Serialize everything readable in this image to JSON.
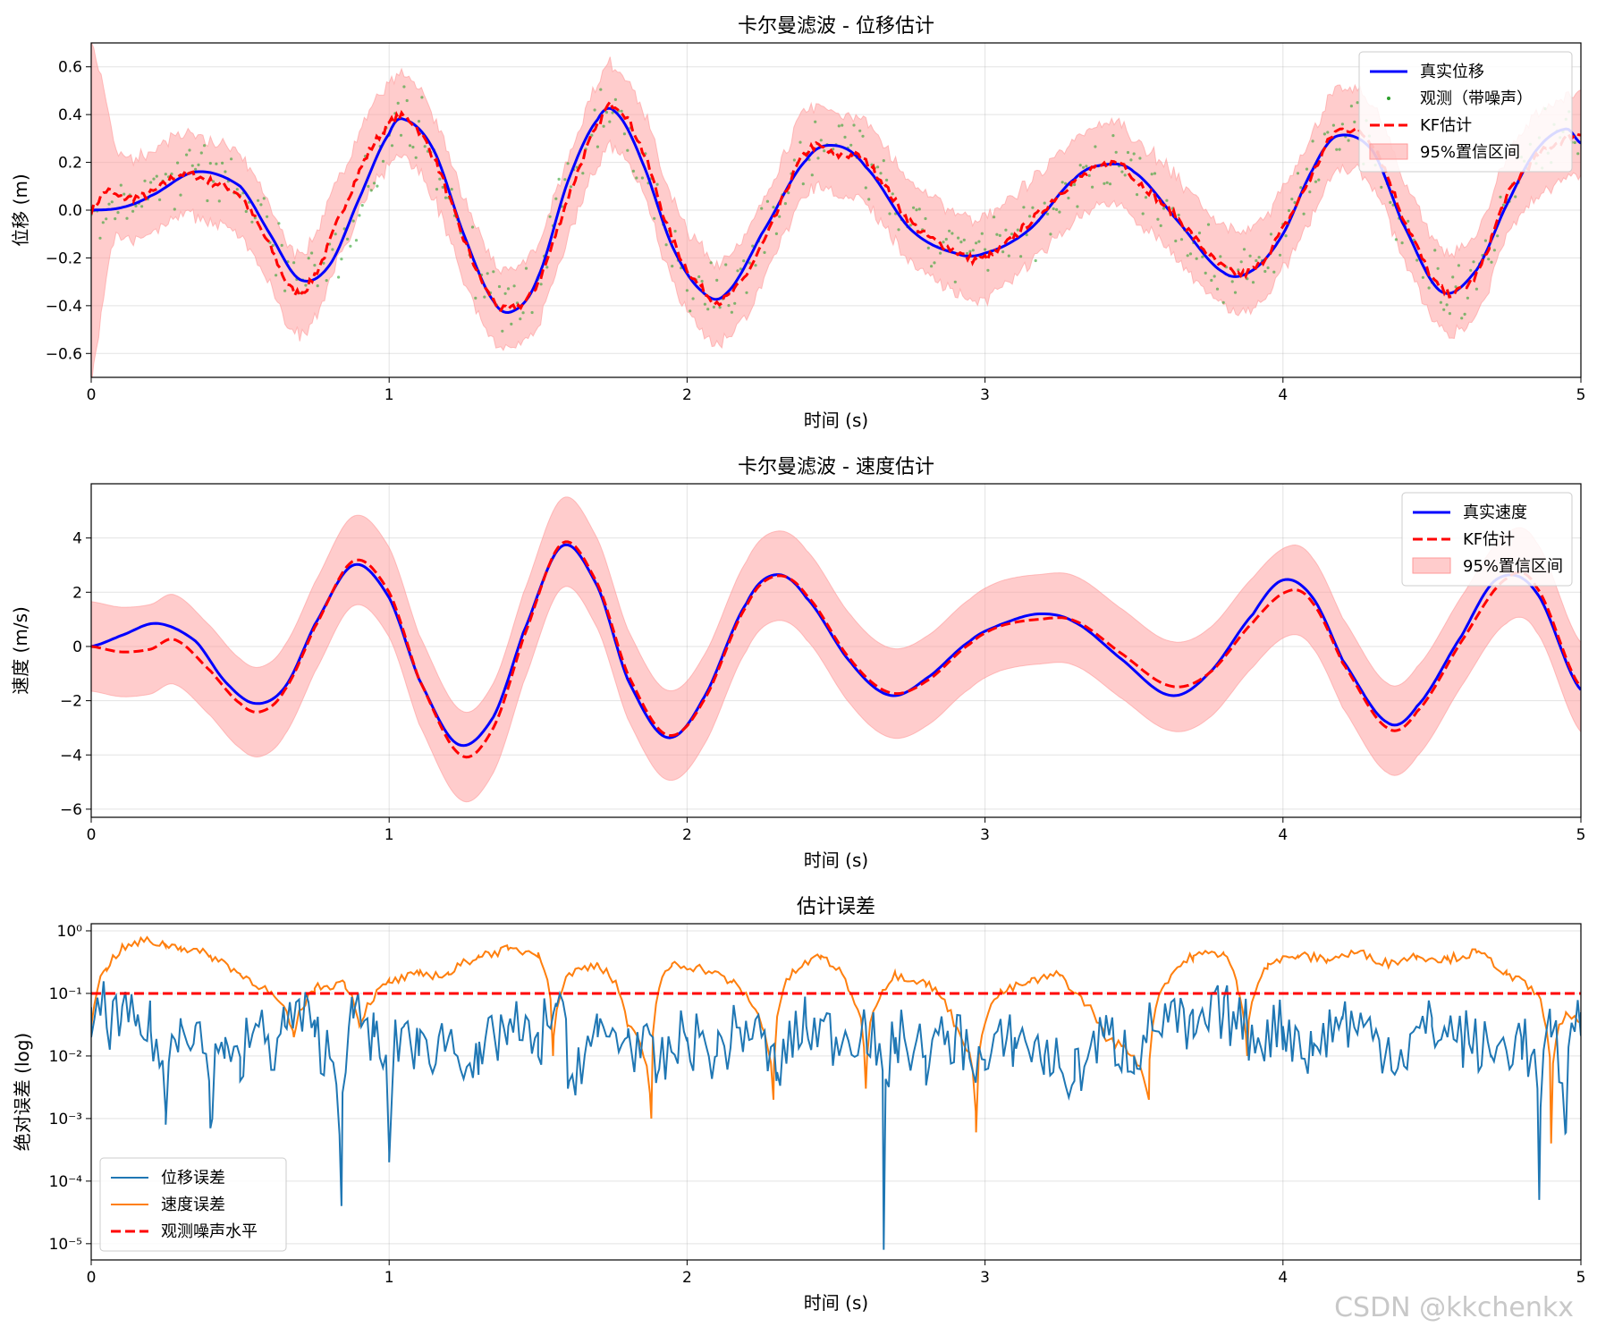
{
  "watermark": "CSDN @kkchenkx",
  "colors": {
    "true_line": "#0000ff",
    "kf_line": "#ff0000",
    "ci_fill": "#ff9999",
    "obs_points": "#2ca02c",
    "pos_error": "#1f77b4",
    "vel_error": "#ff7f0e",
    "noise_level": "#ff0000"
  },
  "chart_data": [
    {
      "type": "line",
      "title": "卡尔曼滤波 - 位移估计",
      "xlabel": "时间 (s)",
      "ylabel": "位移 (m)",
      "xlim": [
        0,
        5
      ],
      "ylim": [
        -0.7,
        0.7
      ],
      "xticks": [
        0,
        1,
        2,
        3,
        4,
        5
      ],
      "yticks": [
        -0.6,
        -0.4,
        -0.2,
        0.0,
        0.2,
        0.4,
        0.6
      ],
      "ytick_labels": [
        "−0.6",
        "−0.4",
        "−0.2",
        "0.0",
        "0.2",
        "0.4",
        "0.6"
      ],
      "grid": true,
      "legend_position": "top-right",
      "legend": [
        "真实位移",
        "观测（带噪声）",
        "KF估计",
        "95%置信区间"
      ],
      "series": [
        {
          "name": "真实位移",
          "style": "solid",
          "color": "#0000ff",
          "x": [
            0,
            0.1,
            0.2,
            0.35,
            0.5,
            0.6,
            0.7,
            0.8,
            0.9,
            1.0,
            1.05,
            1.15,
            1.25,
            1.35,
            1.42,
            1.5,
            1.6,
            1.7,
            1.76,
            1.85,
            1.95,
            2.05,
            2.13,
            2.25,
            2.4,
            2.5,
            2.6,
            2.75,
            2.9,
            3.0,
            3.15,
            3.3,
            3.4,
            3.5,
            3.65,
            3.8,
            3.9,
            4.0,
            4.1,
            4.18,
            4.3,
            4.4,
            4.53,
            4.65,
            4.75,
            4.85,
            4.95,
            5.0
          ],
          "y": [
            0,
            0.01,
            0.06,
            0.16,
            0.1,
            -0.1,
            -0.29,
            -0.23,
            0.05,
            0.32,
            0.38,
            0.25,
            -0.1,
            -0.38,
            -0.42,
            -0.28,
            0.12,
            0.38,
            0.41,
            0.2,
            -0.15,
            -0.34,
            -0.35,
            -0.1,
            0.21,
            0.27,
            0.18,
            -0.08,
            -0.18,
            -0.18,
            -0.08,
            0.13,
            0.19,
            0.16,
            -0.05,
            -0.26,
            -0.25,
            -0.1,
            0.17,
            0.31,
            0.25,
            -0.05,
            -0.34,
            -0.25,
            0.02,
            0.25,
            0.34,
            0.28
          ]
        },
        {
          "name": "KF估计",
          "style": "dashed",
          "color": "#ff0000",
          "x": [
            0,
            0.05,
            0.1,
            0.2,
            0.3,
            0.4,
            0.5,
            0.6,
            0.68,
            0.75,
            0.85,
            0.95,
            1.05,
            1.15,
            1.25,
            1.35,
            1.42,
            1.5,
            1.6,
            1.7,
            1.76,
            1.85,
            1.95,
            2.05,
            2.13,
            2.25,
            2.4,
            2.5,
            2.6,
            2.75,
            2.9,
            3.0,
            3.15,
            3.3,
            3.45,
            3.5,
            3.65,
            3.8,
            3.9,
            4.0,
            4.1,
            4.18,
            4.3,
            4.4,
            4.53,
            4.65,
            4.75,
            4.85,
            4.95,
            5.0
          ],
          "y": [
            0,
            0.08,
            0.05,
            0.07,
            0.15,
            0.12,
            0.06,
            -0.15,
            -0.34,
            -0.27,
            0.02,
            0.28,
            0.39,
            0.22,
            -0.12,
            -0.38,
            -0.41,
            -0.3,
            0.05,
            0.35,
            0.44,
            0.25,
            -0.12,
            -0.33,
            -0.37,
            -0.15,
            0.24,
            0.23,
            0.2,
            -0.05,
            -0.17,
            -0.2,
            -0.05,
            0.12,
            0.2,
            0.13,
            -0.04,
            -0.24,
            -0.25,
            -0.08,
            0.15,
            0.33,
            0.28,
            -0.02,
            -0.33,
            -0.27,
            0.05,
            0.22,
            0.3,
            0.32
          ]
        },
        {
          "name": "95%置信区间",
          "type": "band",
          "color": "#ff9999",
          "half_width": 0.17
        }
      ]
    },
    {
      "type": "line",
      "title": "卡尔曼滤波 - 速度估计",
      "xlabel": "时间 (s)",
      "ylabel": "速度 (m/s)",
      "xlim": [
        0,
        5
      ],
      "ylim": [
        -6.3,
        6.0
      ],
      "xticks": [
        0,
        1,
        2,
        3,
        4,
        5
      ],
      "yticks": [
        -6,
        -4,
        -2,
        0,
        2,
        4
      ],
      "ytick_labels": [
        "−6",
        "−4",
        "−2",
        "0",
        "2",
        "4"
      ],
      "grid": true,
      "legend_position": "top-right",
      "legend": [
        "真实速度",
        "KF估计",
        "95%置信区间"
      ],
      "series": [
        {
          "name": "真实速度",
          "style": "solid",
          "color": "#0000ff",
          "x": [
            0,
            0.1,
            0.22,
            0.35,
            0.45,
            0.55,
            0.65,
            0.75,
            0.88,
            1.0,
            1.1,
            1.23,
            1.35,
            1.45,
            1.58,
            1.7,
            1.8,
            1.93,
            2.05,
            2.2,
            2.3,
            2.4,
            2.55,
            2.68,
            2.8,
            2.95,
            3.05,
            3.18,
            3.3,
            3.45,
            3.62,
            3.75,
            3.9,
            4.0,
            4.1,
            4.2,
            4.35,
            4.45,
            4.6,
            4.72,
            4.85,
            5.0
          ],
          "y": [
            0,
            0.4,
            0.85,
            0.2,
            -1.3,
            -2.1,
            -1.5,
            0.8,
            3.0,
            1.8,
            -1.2,
            -3.6,
            -2.6,
            0.5,
            3.7,
            2.2,
            -1.2,
            -3.35,
            -2.0,
            1.6,
            2.65,
            1.8,
            -0.6,
            -1.8,
            -1.2,
            0.2,
            0.8,
            1.2,
            0.9,
            -0.4,
            -1.8,
            -1.0,
            1.2,
            2.45,
            1.8,
            -0.5,
            -2.8,
            -2.2,
            0.4,
            2.5,
            2.0,
            -1.6
          ]
        },
        {
          "name": "KF估计",
          "style": "dashed",
          "color": "#ff0000",
          "x": [
            0,
            0.1,
            0.2,
            0.28,
            0.4,
            0.5,
            0.57,
            0.65,
            0.75,
            0.88,
            1.0,
            1.1,
            1.24,
            1.35,
            1.45,
            1.58,
            1.7,
            1.8,
            1.93,
            2.05,
            2.2,
            2.3,
            2.4,
            2.55,
            2.68,
            2.8,
            2.95,
            3.05,
            3.18,
            3.3,
            3.45,
            3.62,
            3.75,
            3.9,
            4.02,
            4.1,
            4.2,
            4.35,
            4.45,
            4.6,
            4.75,
            4.85,
            5.0
          ],
          "y": [
            0,
            -0.2,
            -0.1,
            0.25,
            -0.9,
            -2.1,
            -2.4,
            -1.6,
            0.7,
            3.15,
            2.0,
            -1.2,
            -4.0,
            -3.0,
            0.3,
            3.8,
            2.3,
            -1.0,
            -3.25,
            -2.1,
            1.5,
            2.6,
            1.9,
            -0.5,
            -1.7,
            -1.3,
            0.1,
            0.75,
            1.0,
            0.95,
            -0.2,
            -1.45,
            -1.0,
            0.9,
            2.05,
            1.6,
            -0.6,
            -3.0,
            -2.4,
            0.2,
            2.5,
            2.2,
            -1.5
          ]
        },
        {
          "name": "95%置信区间",
          "type": "band",
          "color": "#ff9999",
          "half_width": 1.65
        }
      ]
    },
    {
      "type": "line",
      "title": "估计误差",
      "xlabel": "时间 (s)",
      "ylabel": "绝对误差 (log)",
      "xlim": [
        0,
        5
      ],
      "yscale": "log",
      "ylim": [
        5.5e-06,
        1.3
      ],
      "xticks": [
        0,
        1,
        2,
        3,
        4,
        5
      ],
      "yticks": [
        1,
        0.1,
        0.01,
        0.001,
        0.0001,
        1e-05
      ],
      "ytick_labels": [
        "10⁰",
        "10⁻¹",
        "10⁻²",
        "10⁻³",
        "10⁻⁴",
        "10⁻⁵"
      ],
      "grid": true,
      "legend_position": "bottom-left",
      "legend": [
        "位移误差",
        "速度误差",
        "观测噪声水平"
      ],
      "series": [
        {
          "name": "位移误差",
          "style": "solid",
          "color": "#1f77b4",
          "x": [
            0,
            0.02,
            0.05,
            0.1,
            0.15,
            0.2,
            0.25,
            0.3,
            0.35,
            0.4,
            0.45,
            0.5,
            0.55,
            0.6,
            0.65,
            0.7,
            0.75,
            0.8,
            0.84,
            0.88,
            0.95,
            1.0,
            1.05,
            1.1,
            1.2,
            1.3,
            1.4,
            1.5,
            1.56,
            1.6,
            1.7,
            1.8,
            1.9,
            2.0,
            2.1,
            2.2,
            2.3,
            2.4,
            2.5,
            2.6,
            2.66,
            2.7,
            2.8,
            2.9,
            3.0,
            3.1,
            3.2,
            3.3,
            3.4,
            3.5,
            3.6,
            3.7,
            3.8,
            3.9,
            4.0,
            4.1,
            4.2,
            4.3,
            4.4,
            4.5,
            4.6,
            4.7,
            4.8,
            4.86,
            4.9,
            4.95,
            5.0
          ],
          "y": [
            0.02,
            0.08,
            0.04,
            0.035,
            0.03,
            0.025,
            0.0008,
            0.04,
            0.03,
            0.0007,
            0.02,
            0.004,
            0.03,
            0.01,
            0.03,
            0.05,
            0.02,
            0.01,
            4e-05,
            0.04,
            0.02,
            0.0002,
            0.03,
            0.01,
            0.02,
            0.005,
            0.03,
            0.01,
            0.07,
            0.003,
            0.02,
            0.02,
            0.005,
            0.02,
            0.01,
            0.03,
            0.004,
            0.03,
            0.02,
            0.03,
            8e-06,
            0.02,
            0.01,
            0.02,
            0.006,
            0.02,
            0.01,
            0.004,
            0.02,
            0.01,
            0.04,
            0.02,
            0.05,
            0.02,
            0.03,
            0.01,
            0.04,
            0.02,
            0.01,
            0.03,
            0.02,
            0.01,
            0.02,
            5e-05,
            0.02,
            0.0006,
            0.05
          ]
        },
        {
          "name": "速度误差",
          "style": "solid",
          "color": "#ff7f0e",
          "x": [
            0,
            0.05,
            0.1,
            0.18,
            0.25,
            0.3,
            0.4,
            0.5,
            0.6,
            0.68,
            0.75,
            0.85,
            0.9,
            1.0,
            1.1,
            1.2,
            1.3,
            1.4,
            1.5,
            1.55,
            1.6,
            1.7,
            1.8,
            1.88,
            1.95,
            2.05,
            2.15,
            2.25,
            2.29,
            2.35,
            2.45,
            2.55,
            2.6,
            2.7,
            2.8,
            2.9,
            2.97,
            3.05,
            3.15,
            3.25,
            3.3,
            3.4,
            3.5,
            3.55,
            3.7,
            3.8,
            3.85,
            3.88,
            3.95,
            4.05,
            4.15,
            4.25,
            4.35,
            4.45,
            4.55,
            4.65,
            4.75,
            4.85,
            4.9,
            4.95,
            5.0
          ],
          "y": [
            0.03,
            0.25,
            0.5,
            0.7,
            0.6,
            0.55,
            0.4,
            0.2,
            0.1,
            0.02,
            0.12,
            0.15,
            0.03,
            0.15,
            0.2,
            0.2,
            0.4,
            0.5,
            0.45,
            0.01,
            0.2,
            0.3,
            0.03,
            0.001,
            0.3,
            0.25,
            0.15,
            0.03,
            0.002,
            0.2,
            0.4,
            0.1,
            0.003,
            0.2,
            0.15,
            0.03,
            0.0006,
            0.1,
            0.15,
            0.2,
            0.1,
            0.02,
            0.01,
            0.002,
            0.4,
            0.45,
            0.1,
            0.01,
            0.3,
            0.4,
            0.35,
            0.45,
            0.3,
            0.4,
            0.35,
            0.45,
            0.2,
            0.1,
            0.0004,
            0.05,
            0.03
          ]
        },
        {
          "name": "观测噪声水平",
          "style": "dashed",
          "color": "#ff0000",
          "x": [
            0,
            5
          ],
          "y": [
            0.1,
            0.1
          ]
        }
      ]
    }
  ]
}
